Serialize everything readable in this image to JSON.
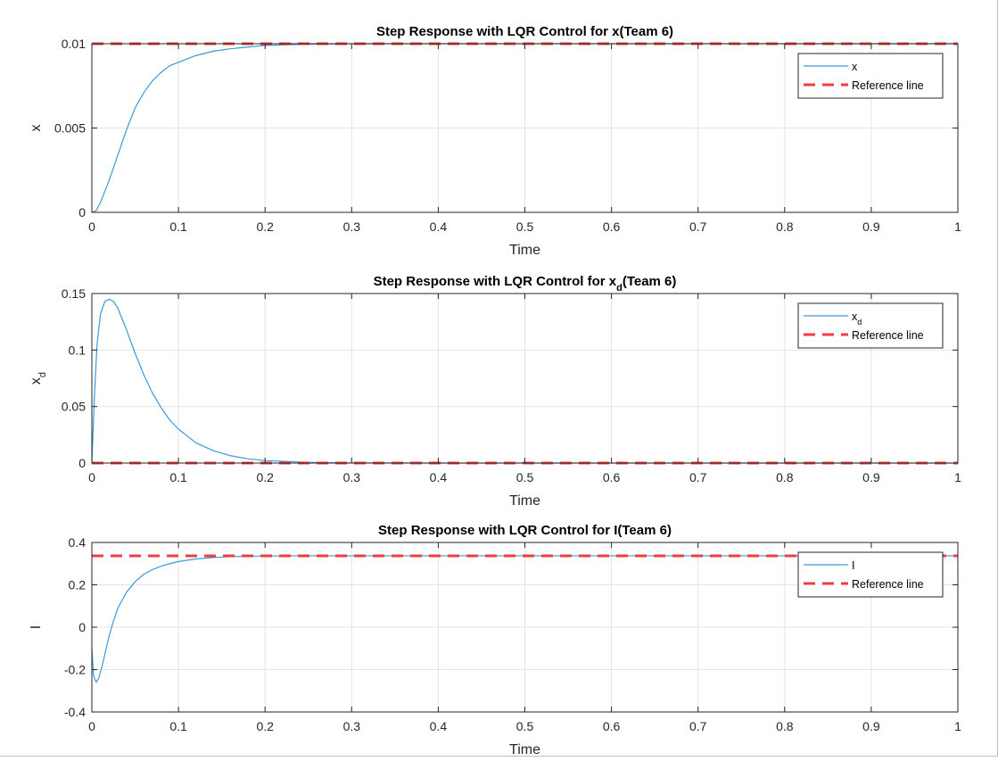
{
  "colors": {
    "response": "#3a9ad9",
    "reference": "#f03c3c",
    "grid": "#e3e3e3",
    "axis": "#262626"
  },
  "chart_data": [
    {
      "type": "line",
      "title": "Step Response with LQR Control for x(Team 6)",
      "title_main": "Step Response with LQR Control for x",
      "title_sub": "",
      "title_tail": "(Team 6)",
      "xlabel": "Time",
      "ylabel": "x",
      "ylabel_sub": "",
      "xlim": [
        0,
        1
      ],
      "ylim": [
        0,
        0.01
      ],
      "xticks": [
        0,
        0.1,
        0.2,
        0.3,
        0.4,
        0.5,
        0.6,
        0.7,
        0.8,
        0.9,
        1
      ],
      "xticklabels": [
        "0",
        "0.1",
        "0.2",
        "0.3",
        "0.4",
        "0.5",
        "0.6",
        "0.7",
        "0.8",
        "0.9",
        "1"
      ],
      "yticks": [
        0,
        0.005,
        0.01
      ],
      "yticklabels": [
        "0",
        "0.005",
        "0.01"
      ],
      "grid": true,
      "legend_position": "top-right",
      "series": [
        {
          "name": "x",
          "name_sub": "",
          "style": "solid",
          "x": [
            0,
            0.005,
            0.01,
            0.02,
            0.03,
            0.04,
            0.05,
            0.06,
            0.07,
            0.08,
            0.09,
            0.1,
            0.12,
            0.14,
            0.16,
            0.18,
            0.2,
            0.25,
            0.3,
            0.4,
            0.5,
            0.6,
            0.7,
            0.8,
            0.9,
            1.0
          ],
          "y": [
            0,
            0.0001,
            0.0006,
            0.0019,
            0.0034,
            0.0049,
            0.0062,
            0.0071,
            0.0078,
            0.0083,
            0.0087,
            0.0089,
            0.0093,
            0.00955,
            0.0097,
            0.0098,
            0.0099,
            0.00997,
            0.01,
            0.01,
            0.01,
            0.01,
            0.01,
            0.01,
            0.01,
            0.01
          ]
        },
        {
          "name": "Reference line",
          "name_sub": "",
          "style": "dashed",
          "x": [
            0,
            1
          ],
          "y": [
            0.01,
            0.01
          ]
        }
      ]
    },
    {
      "type": "line",
      "title": "Step Response with LQR Control for xd(Team 6)",
      "title_main": "Step Response with LQR Control for x",
      "title_sub": "d",
      "title_tail": "(Team 6)",
      "xlabel": "Time",
      "ylabel": "x",
      "ylabel_sub": "d",
      "xlim": [
        0,
        1
      ],
      "ylim": [
        0,
        0.15
      ],
      "xticks": [
        0,
        0.1,
        0.2,
        0.3,
        0.4,
        0.5,
        0.6,
        0.7,
        0.8,
        0.9,
        1
      ],
      "xticklabels": [
        "0",
        "0.1",
        "0.2",
        "0.3",
        "0.4",
        "0.5",
        "0.6",
        "0.7",
        "0.8",
        "0.9",
        "1"
      ],
      "yticks": [
        0,
        0.05,
        0.1,
        0.15
      ],
      "yticklabels": [
        "0",
        "0.05",
        "0.1",
        "0.15"
      ],
      "grid": true,
      "legend_position": "top-right",
      "series": [
        {
          "name": "x",
          "name_sub": "d",
          "style": "solid",
          "x": [
            0,
            0.003,
            0.006,
            0.01,
            0.015,
            0.02,
            0.025,
            0.03,
            0.04,
            0.05,
            0.06,
            0.07,
            0.08,
            0.09,
            0.1,
            0.12,
            0.14,
            0.16,
            0.18,
            0.2,
            0.25,
            0.3,
            0.4,
            0.5,
            0.6,
            0.7,
            0.8,
            0.9,
            1.0
          ],
          "y": [
            0,
            0.06,
            0.105,
            0.132,
            0.143,
            0.145,
            0.143,
            0.137,
            0.118,
            0.097,
            0.078,
            0.062,
            0.049,
            0.038,
            0.03,
            0.018,
            0.011,
            0.0065,
            0.0038,
            0.0022,
            0.0006,
            0.0001,
            0,
            0,
            0,
            0,
            0,
            0,
            0
          ]
        },
        {
          "name": "Reference line",
          "name_sub": "",
          "style": "dashed",
          "x": [
            0,
            1
          ],
          "y": [
            0,
            0
          ]
        }
      ]
    },
    {
      "type": "line",
      "title": "Step Response with LQR Control for I(Team 6)",
      "title_main": "Step Response with LQR Control for I",
      "title_sub": "",
      "title_tail": "(Team 6)",
      "xlabel": "Time",
      "ylabel": "I",
      "ylabel_sub": "",
      "xlim": [
        0,
        1
      ],
      "ylim": [
        -0.4,
        0.4
      ],
      "xticks": [
        0,
        0.1,
        0.2,
        0.3,
        0.4,
        0.5,
        0.6,
        0.7,
        0.8,
        0.9,
        1
      ],
      "xticklabels": [
        "0",
        "0.1",
        "0.2",
        "0.3",
        "0.4",
        "0.5",
        "0.6",
        "0.7",
        "0.8",
        "0.9",
        "1"
      ],
      "yticks": [
        -0.4,
        -0.2,
        0,
        0.2,
        0.4
      ],
      "yticklabels": [
        "-0.4",
        "-0.2",
        "0",
        "0.2",
        "0.4"
      ],
      "grid": true,
      "legend_position": "top-right",
      "series": [
        {
          "name": "I",
          "name_sub": "",
          "style": "solid",
          "x": [
            0,
            0.002,
            0.005,
            0.008,
            0.012,
            0.016,
            0.02,
            0.025,
            0.03,
            0.04,
            0.05,
            0.06,
            0.07,
            0.08,
            0.09,
            0.1,
            0.12,
            0.14,
            0.16,
            0.18,
            0.2,
            0.25,
            0.3,
            0.4,
            0.5,
            0.6,
            0.7,
            0.8,
            0.9,
            1.0
          ],
          "y": [
            -0.1,
            -0.23,
            -0.26,
            -0.24,
            -0.18,
            -0.11,
            -0.04,
            0.03,
            0.09,
            0.165,
            0.215,
            0.25,
            0.272,
            0.288,
            0.3,
            0.31,
            0.322,
            0.329,
            0.333,
            0.335,
            0.336,
            0.337,
            0.337,
            0.337,
            0.337,
            0.337,
            0.337,
            0.337,
            0.337,
            0.337
          ]
        },
        {
          "name": "Reference line",
          "name_sub": "",
          "style": "dashed",
          "x": [
            0,
            1
          ],
          "y": [
            0.337,
            0.337
          ]
        }
      ]
    }
  ]
}
